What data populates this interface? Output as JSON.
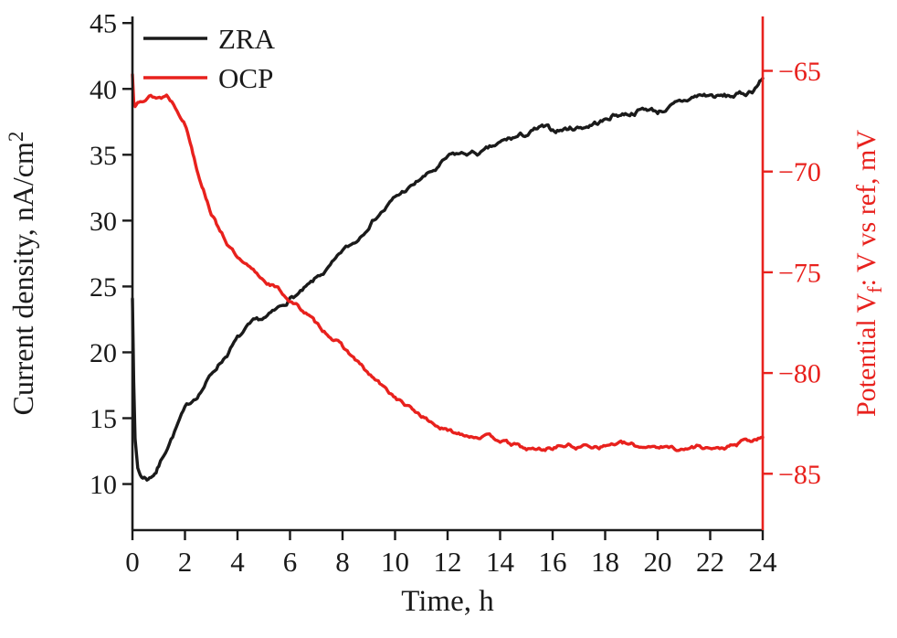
{
  "chart_data": {
    "type": "line",
    "title": "",
    "xlabel": "Time, h",
    "xlim": [
      0,
      24
    ],
    "x_ticks": [
      0,
      2,
      4,
      6,
      8,
      10,
      12,
      14,
      16,
      18,
      20,
      22,
      24
    ],
    "grid": false,
    "left_axis": {
      "label_main": "Current density, nA/cm",
      "label_sup": "2",
      "ticks": [
        10,
        15,
        20,
        25,
        30,
        35,
        40,
        45
      ],
      "lim": [
        6.5,
        45.5
      ],
      "color": "#1a1a1a"
    },
    "right_axis": {
      "label_pre": "Potential V",
      "label_sub": "f",
      "label_post": ": V vs ref, mV",
      "ticks": [
        -85,
        -80,
        -75,
        -70,
        -65
      ],
      "lim": [
        -87.8,
        -62.3
      ],
      "color": "#e8211d"
    },
    "legend": {
      "position": "top-left",
      "entries": [
        {
          "label": "ZRA",
          "color": "#1a1a1a"
        },
        {
          "label": "OCP",
          "color": "#e8211d"
        }
      ]
    },
    "series": [
      {
        "name": "ZRA",
        "axis": "left",
        "color": "#1a1a1a",
        "points": [
          [
            0,
            24.2
          ],
          [
            0.05,
            18.0
          ],
          [
            0.1,
            13.5
          ],
          [
            0.2,
            11.2
          ],
          [
            0.3,
            10.7
          ],
          [
            0.4,
            10.5
          ],
          [
            0.5,
            10.5
          ],
          [
            0.6,
            10.4
          ],
          [
            0.7,
            10.6
          ],
          [
            0.8,
            10.8
          ],
          [
            0.9,
            11.0
          ],
          [
            1.0,
            11.4
          ],
          [
            1.2,
            12.3
          ],
          [
            1.4,
            13.2
          ],
          [
            1.6,
            14.0
          ],
          [
            1.8,
            14.9
          ],
          [
            2.0,
            15.6
          ],
          [
            2.2,
            16.1
          ],
          [
            2.4,
            16.6
          ],
          [
            2.6,
            17.1
          ],
          [
            2.8,
            17.7
          ],
          [
            3.0,
            18.3
          ],
          [
            3.2,
            18.9
          ],
          [
            3.4,
            19.4
          ],
          [
            3.6,
            19.9
          ],
          [
            3.8,
            20.5
          ],
          [
            4.0,
            21.0
          ],
          [
            4.2,
            21.4
          ],
          [
            4.4,
            21.8
          ],
          [
            4.6,
            22.1
          ],
          [
            4.8,
            22.3
          ],
          [
            5.0,
            22.5
          ],
          [
            5.2,
            22.7
          ],
          [
            5.4,
            23.0
          ],
          [
            5.6,
            23.3
          ],
          [
            5.8,
            23.7
          ],
          [
            6.0,
            24.1
          ],
          [
            6.2,
            24.3
          ],
          [
            6.4,
            24.5
          ],
          [
            6.6,
            24.8
          ],
          [
            6.8,
            25.1
          ],
          [
            7.0,
            25.5
          ],
          [
            7.2,
            25.9
          ],
          [
            7.4,
            26.2
          ],
          [
            7.6,
            26.6
          ],
          [
            7.8,
            27.0
          ],
          [
            8.0,
            27.6
          ],
          [
            8.2,
            27.9
          ],
          [
            8.4,
            28.2
          ],
          [
            8.6,
            28.6
          ],
          [
            8.8,
            29.2
          ],
          [
            9.0,
            29.8
          ],
          [
            9.2,
            30.2
          ],
          [
            9.4,
            30.6
          ],
          [
            9.6,
            30.9
          ],
          [
            9.8,
            31.3
          ],
          [
            10.0,
            31.7
          ],
          [
            10.2,
            32.0
          ],
          [
            10.4,
            32.3
          ],
          [
            10.6,
            32.5
          ],
          [
            10.8,
            32.8
          ],
          [
            11.0,
            33.2
          ],
          [
            11.2,
            33.4
          ],
          [
            11.4,
            33.7
          ],
          [
            11.6,
            33.9
          ],
          [
            11.8,
            34.3
          ],
          [
            12.0,
            34.7
          ],
          [
            12.2,
            34.9
          ],
          [
            12.4,
            35.0
          ],
          [
            12.6,
            35.0
          ],
          [
            12.8,
            35.1
          ],
          [
            13.0,
            35.1
          ],
          [
            13.2,
            35.1
          ],
          [
            13.4,
            35.2
          ],
          [
            13.6,
            35.4
          ],
          [
            13.8,
            35.6
          ],
          [
            14.0,
            35.8
          ],
          [
            14.3,
            36.1
          ],
          [
            14.6,
            36.3
          ],
          [
            15.0,
            36.5
          ],
          [
            15.3,
            36.8
          ],
          [
            15.6,
            37.0
          ],
          [
            16.0,
            36.8
          ],
          [
            16.3,
            36.9
          ],
          [
            16.6,
            37.0
          ],
          [
            17.0,
            37.1
          ],
          [
            17.3,
            37.2
          ],
          [
            17.6,
            37.4
          ],
          [
            18.0,
            37.6
          ],
          [
            18.3,
            38.0
          ],
          [
            18.6,
            38.1
          ],
          [
            19.0,
            38.2
          ],
          [
            19.3,
            38.4
          ],
          [
            19.6,
            38.5
          ],
          [
            20.0,
            38.3
          ],
          [
            20.3,
            38.5
          ],
          [
            20.6,
            38.7
          ],
          [
            21.0,
            39.0
          ],
          [
            21.3,
            39.3
          ],
          [
            21.6,
            39.5
          ],
          [
            22.0,
            39.5
          ],
          [
            22.3,
            39.4
          ],
          [
            22.6,
            39.4
          ],
          [
            23.0,
            39.5
          ],
          [
            23.3,
            39.6
          ],
          [
            23.6,
            39.9
          ],
          [
            24.0,
            40.8
          ]
        ]
      },
      {
        "name": "OCP",
        "axis": "right",
        "color": "#e8211d",
        "points": [
          [
            0,
            -65.2
          ],
          [
            0.05,
            -66.5
          ],
          [
            0.1,
            -66.7
          ],
          [
            0.2,
            -66.4
          ],
          [
            0.3,
            -66.3
          ],
          [
            0.5,
            -66.4
          ],
          [
            0.7,
            -66.2
          ],
          [
            0.9,
            -66.3
          ],
          [
            1.1,
            -66.3
          ],
          [
            1.3,
            -66.2
          ],
          [
            1.5,
            -66.5
          ],
          [
            1.7,
            -66.9
          ],
          [
            1.9,
            -67.3
          ],
          [
            2.0,
            -67.6
          ],
          [
            2.1,
            -68.0
          ],
          [
            2.2,
            -68.5
          ],
          [
            2.3,
            -69.0
          ],
          [
            2.4,
            -69.5
          ],
          [
            2.5,
            -70.0
          ],
          [
            2.6,
            -70.4
          ],
          [
            2.7,
            -70.8
          ],
          [
            2.8,
            -71.2
          ],
          [
            2.9,
            -71.6
          ],
          [
            3.0,
            -72.0
          ],
          [
            3.1,
            -72.3
          ],
          [
            3.2,
            -72.6
          ],
          [
            3.4,
            -73.0
          ],
          [
            3.6,
            -73.5
          ],
          [
            3.8,
            -73.9
          ],
          [
            4.0,
            -74.3
          ],
          [
            4.2,
            -74.6
          ],
          [
            4.4,
            -74.8
          ],
          [
            4.6,
            -75.0
          ],
          [
            4.8,
            -75.2
          ],
          [
            5.0,
            -75.4
          ],
          [
            5.3,
            -75.6
          ],
          [
            5.6,
            -75.9
          ],
          [
            6.0,
            -76.4
          ],
          [
            6.3,
            -76.7
          ],
          [
            6.6,
            -77.0
          ],
          [
            7.0,
            -77.6
          ],
          [
            7.3,
            -77.9
          ],
          [
            7.6,
            -78.2
          ],
          [
            8.0,
            -78.7
          ],
          [
            8.3,
            -79.1
          ],
          [
            8.6,
            -79.5
          ],
          [
            9.0,
            -80.1
          ],
          [
            9.3,
            -80.4
          ],
          [
            9.6,
            -80.8
          ],
          [
            10.0,
            -81.2
          ],
          [
            10.3,
            -81.5
          ],
          [
            10.6,
            -81.8
          ],
          [
            11.0,
            -82.1
          ],
          [
            11.3,
            -82.4
          ],
          [
            11.6,
            -82.6
          ],
          [
            12.0,
            -82.9
          ],
          [
            12.3,
            -83.0
          ],
          [
            12.6,
            -83.0
          ],
          [
            13.0,
            -83.1
          ],
          [
            13.3,
            -83.1
          ],
          [
            13.6,
            -83.2
          ],
          [
            14.0,
            -83.3
          ],
          [
            14.3,
            -83.5
          ],
          [
            14.6,
            -83.6
          ],
          [
            15.0,
            -83.8
          ],
          [
            15.3,
            -83.8
          ],
          [
            15.6,
            -83.8
          ],
          [
            16.0,
            -83.7
          ],
          [
            16.3,
            -83.6
          ],
          [
            16.6,
            -83.6
          ],
          [
            17.0,
            -83.7
          ],
          [
            17.3,
            -83.6
          ],
          [
            17.6,
            -83.6
          ],
          [
            18.0,
            -83.6
          ],
          [
            18.3,
            -83.5
          ],
          [
            18.6,
            -83.5
          ],
          [
            19.0,
            -83.6
          ],
          [
            19.3,
            -83.7
          ],
          [
            19.6,
            -83.6
          ],
          [
            20.0,
            -83.6
          ],
          [
            20.3,
            -83.7
          ],
          [
            20.6,
            -83.7
          ],
          [
            21.0,
            -83.8
          ],
          [
            21.3,
            -83.7
          ],
          [
            21.6,
            -83.6
          ],
          [
            22.0,
            -83.7
          ],
          [
            22.3,
            -83.8
          ],
          [
            22.6,
            -83.7
          ],
          [
            23.0,
            -83.6
          ],
          [
            23.3,
            -83.4
          ],
          [
            23.6,
            -83.4
          ],
          [
            24.0,
            -83.2
          ]
        ]
      }
    ]
  },
  "colors": {
    "background": "#ffffff",
    "black_axis": "#1a1a1a",
    "red_axis": "#e8211d"
  }
}
